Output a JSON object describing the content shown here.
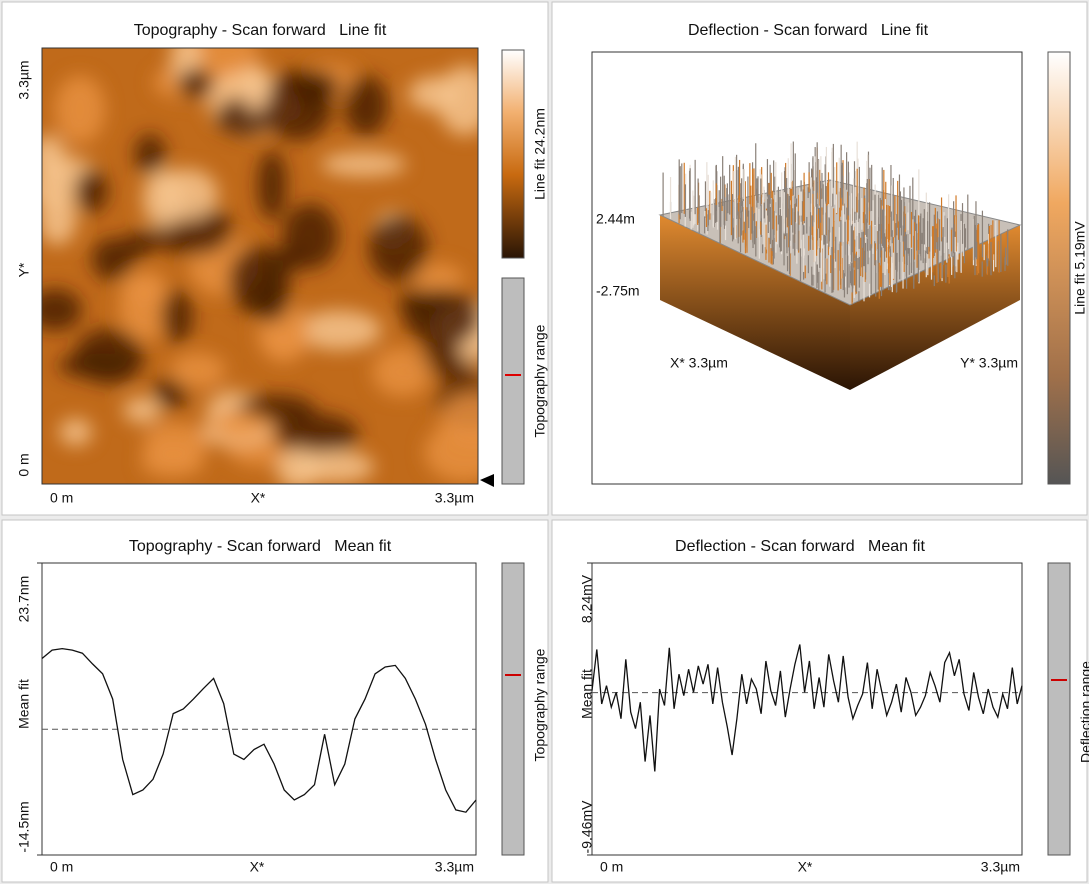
{
  "panels": [
    {
      "title": "Topography - Scan forward   Line fit",
      "y_top": "3.3µm",
      "y_label": "Y*",
      "y_bottom": "0 m",
      "x_left": "0 m",
      "x_label": "X*",
      "x_right": "3.3µm",
      "colorbar_label": "Line fit 24.2nm",
      "range_label": "Topography range"
    },
    {
      "title": "Deflection - Scan forward   Line fit",
      "z_top": "2.44m",
      "z_bottom": "-2.75m",
      "x_label": "X* 3.3µm",
      "y_label": "Y* 3.3µm",
      "colorbar_label": "Line fit 5.19mV"
    },
    {
      "title": "Topography - Scan forward   Mean fit",
      "y_label": "Mean fit",
      "ylim": [
        -14.5,
        23.7
      ],
      "yticks": [
        {
          "value": 23.7,
          "label": "23.7nm"
        },
        {
          "value": -14.5,
          "label": "-14.5nm"
        }
      ],
      "x_left": "0 m",
      "x_label": "X*",
      "x_right": "3.3µm",
      "range_label": "Topography range",
      "profile": [
        11.2,
        12.3,
        12.5,
        12.3,
        11.9,
        10.5,
        9.2,
        5.9,
        -2,
        -6.6,
        -6,
        -4.6,
        -1.3,
        4,
        4.6,
        5.9,
        7.3,
        8.6,
        5.3,
        -1.3,
        -2,
        -0.7,
        0,
        -2.6,
        -6,
        -7.3,
        -6.6,
        -5.3,
        1.3,
        -5.3,
        -2.6,
        3.3,
        5.9,
        9.2,
        10.1,
        10.3,
        8.6,
        5.9,
        2.6,
        -2,
        -6,
        -8.6,
        -8.9,
        -7.3
      ]
    },
    {
      "title": "Deflection - Scan forward   Mean fit",
      "y_label": "Mean fit",
      "ylim": [
        -9.46,
        8.24
      ],
      "yticks": [
        {
          "value": 8.24,
          "label": "8.24mV"
        },
        {
          "value": -9.46,
          "label": "-9.46mV"
        }
      ],
      "x_left": "0 m",
      "x_label": "X*",
      "x_right": "3.3µm",
      "range_label": "Deflection range",
      "profile": [
        0.5,
        3.0,
        -0.3,
        0.8,
        -0.5,
        0.4,
        -1.2,
        2.4,
        -0.8,
        -1.8,
        -0.2,
        -3.8,
        -1.0,
        -4.4,
        0.6,
        -0.4,
        3.1,
        -0.6,
        1.5,
        0.2,
        1.8,
        0.4,
        2.0,
        0.9,
        2.1,
        -0.3,
        1.9,
        -0.2,
        -1.7,
        -3.4,
        -1.2,
        1.5,
        -0.3,
        1.2,
        0.6,
        -0.9,
        2.3,
        0.5,
        -0.4,
        1.7,
        -1.1,
        0.6,
        2.1,
        3.3,
        0.4,
        2.3,
        -0.6,
        1.3,
        -0.5,
        2.7,
        1.1,
        -0.2,
        2.6,
        0.1,
        -1.2,
        -0.4,
        0.3,
        2.2,
        -0.6,
        1.8,
        0.4,
        -1.0,
        -0.2,
        0.9,
        -0.8,
        1.3,
        0.4,
        -1.0,
        -0.5,
        0.2,
        1.6,
        0.8,
        -0.2,
        2.2,
        2.8,
        1.4,
        2.4,
        0.3,
        -0.7,
        1.6,
        0.1,
        -0.9,
        0.6,
        -0.5,
        -1.1,
        0.3,
        -0.6,
        1.9,
        -0.3,
        0.8
      ]
    }
  ]
}
